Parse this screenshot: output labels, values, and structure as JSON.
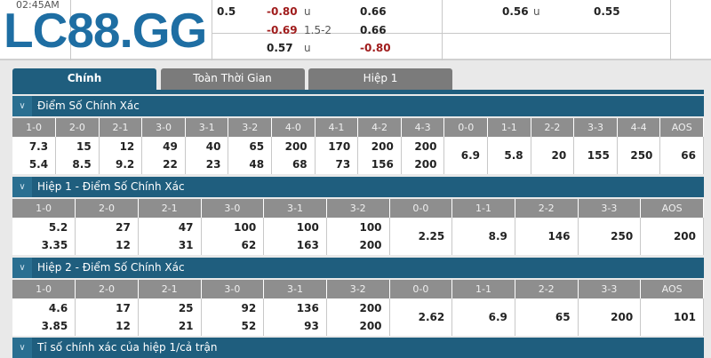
{
  "brand": {
    "logo": "LC88.GG",
    "color": "#1e6ea3"
  },
  "top": {
    "time": "02:45AM",
    "cells": [
      {
        "text": "0.5",
        "kind": "num"
      },
      {
        "text": "-0.80",
        "kind": "red"
      },
      {
        "text": "u",
        "kind": "u"
      },
      {
        "text": "0.66",
        "kind": "num"
      },
      {
        "text": "0.56",
        "kind": "num"
      },
      {
        "text": "u",
        "kind": "u"
      },
      {
        "text": "0.55",
        "kind": "num"
      },
      {
        "text": "-0.69",
        "kind": "red"
      },
      {
        "text": "1.5-2",
        "kind": "u"
      },
      {
        "text": "0.66",
        "kind": "num"
      },
      {
        "text": "0.57",
        "kind": "num"
      },
      {
        "text": "u",
        "kind": "u"
      },
      {
        "text": "-0.80",
        "kind": "red"
      }
    ]
  },
  "tabs": [
    {
      "label": "Chính",
      "active": true
    },
    {
      "label": "Toàn Thời Gian",
      "active": false
    },
    {
      "label": "Hiệp 1",
      "active": false
    }
  ],
  "sections": [
    {
      "title": "Điểm Số Chính Xác",
      "columns": [
        "1-0",
        "2-0",
        "2-1",
        "3-0",
        "3-1",
        "3-2",
        "4-0",
        "4-1",
        "4-2",
        "4-3",
        "0-0",
        "1-1",
        "2-2",
        "3-3",
        "4-4",
        "AOS"
      ],
      "home": [
        "7.3",
        "15",
        "12",
        "49",
        "40",
        "65",
        "200",
        "170",
        "200",
        "200"
      ],
      "away": [
        "5.4",
        "8.5",
        "9.2",
        "22",
        "23",
        "48",
        "68",
        "73",
        "156",
        "200"
      ],
      "draw": [
        "6.9",
        "5.8",
        "20",
        "155",
        "250",
        "66"
      ]
    },
    {
      "title": "Hiệp 1 - Điểm Số Chính Xác",
      "columns": [
        "1-0",
        "2-0",
        "2-1",
        "3-0",
        "3-1",
        "3-2",
        "0-0",
        "1-1",
        "2-2",
        "3-3",
        "AOS"
      ],
      "home": [
        "5.2",
        "27",
        "47",
        "100",
        "100",
        "100"
      ],
      "away": [
        "3.35",
        "12",
        "31",
        "62",
        "163",
        "200"
      ],
      "draw": [
        "2.25",
        "8.9",
        "146",
        "250",
        "200"
      ]
    },
    {
      "title": "Hiệp 2 - Điểm Số Chính Xác",
      "columns": [
        "1-0",
        "2-0",
        "2-1",
        "3-0",
        "3-1",
        "3-2",
        "0-0",
        "1-1",
        "2-2",
        "3-3",
        "AOS"
      ],
      "home": [
        "4.6",
        "17",
        "25",
        "92",
        "136",
        "200"
      ],
      "away": [
        "3.85",
        "12",
        "21",
        "52",
        "93",
        "200"
      ],
      "draw": [
        "2.62",
        "6.9",
        "65",
        "200",
        "101"
      ]
    },
    {
      "title": "Tỉ số chính xác của hiệp 1/cả trận"
    }
  ]
}
